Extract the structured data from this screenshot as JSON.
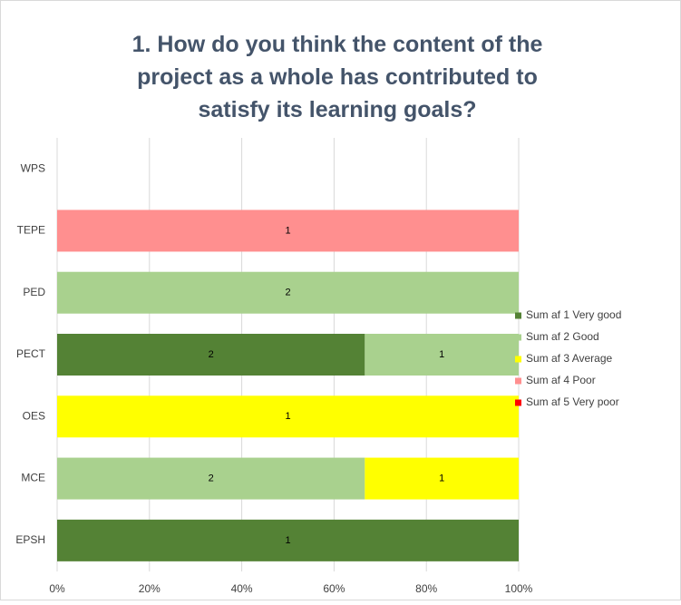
{
  "chart_data": {
    "type": "bar",
    "orientation": "horizontal",
    "stacking": "percent",
    "title": "1. How do you think the content of the project as a whole has contributed to satisfy its learning goals?",
    "categories": [
      "WPS",
      "TEPE",
      "PED",
      "PECT",
      "OES",
      "MCE",
      "EPSH"
    ],
    "series": [
      {
        "name": "Sum af 1 Very good",
        "color": "#548235",
        "values": [
          null,
          null,
          null,
          2,
          null,
          null,
          1
        ]
      },
      {
        "name": "Sum af 2 Good",
        "color": "#a9d18e",
        "values": [
          null,
          null,
          2,
          1,
          null,
          2,
          null
        ]
      },
      {
        "name": "Sum af 3 Average",
        "color": "#ffff00",
        "values": [
          null,
          null,
          null,
          null,
          1,
          1,
          null
        ]
      },
      {
        "name": "Sum af 4 Poor",
        "color": "#ff8f8f",
        "values": [
          null,
          1,
          null,
          null,
          null,
          null,
          null
        ]
      },
      {
        "name": "Sum af 5 Very poor",
        "color": "#ff0000",
        "values": [
          null,
          null,
          null,
          null,
          null,
          null,
          null
        ]
      }
    ],
    "xlim": [
      0,
      100
    ],
    "xticks": [
      {
        "value": 0,
        "label": "0%"
      },
      {
        "value": 20,
        "label": "20%"
      },
      {
        "value": 40,
        "label": "40%"
      },
      {
        "value": 60,
        "label": "60%"
      },
      {
        "value": 80,
        "label": "80%"
      },
      {
        "value": 100,
        "label": "100%"
      }
    ],
    "grid": true,
    "legend": "right"
  }
}
